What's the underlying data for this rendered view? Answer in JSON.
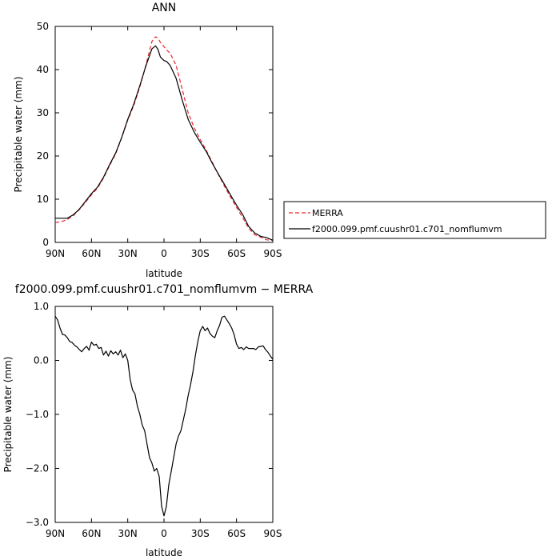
{
  "chart_data": [
    {
      "type": "line",
      "title": "ANN",
      "xlabel": "latitude",
      "ylabel": "Precipitable water  (mm)",
      "xlim": [
        90,
        -90
      ],
      "ylim": [
        0,
        50
      ],
      "x_tick_values": [
        90,
        60,
        30,
        0,
        -30,
        -60,
        -90
      ],
      "x_tick_labels": [
        "90N",
        "60N",
        "30N",
        "0",
        "30S",
        "60S",
        "90S"
      ],
      "y_tick_values": [
        0,
        10,
        20,
        30,
        40,
        50
      ],
      "y_tick_labels": [
        "0",
        "10",
        "20",
        "30",
        "40",
        "50"
      ],
      "grid": false,
      "legend_position": "right",
      "series": [
        {
          "name": "MERRA",
          "color": "#e8262e",
          "dash": "dashed",
          "x": [
            90,
            85,
            80,
            75,
            70,
            65,
            60,
            55,
            50,
            45,
            40,
            35,
            30,
            25,
            20,
            15,
            10,
            7,
            5,
            3,
            0,
            -2,
            -5,
            -10,
            -15,
            -20,
            -25,
            -30,
            -35,
            -40,
            -45,
            -50,
            -55,
            -60,
            -65,
            -70,
            -75,
            -80,
            -85,
            -90
          ],
          "y": [
            4.6,
            4.8,
            5.3,
            6.2,
            7.6,
            9.3,
            11.0,
            12.6,
            14.9,
            17.8,
            20.5,
            24.2,
            28.3,
            31.7,
            36.0,
            41.0,
            46.5,
            47.6,
            47.3,
            46.3,
            45.3,
            44.6,
            43.8,
            41.0,
            35.5,
            30.0,
            26.5,
            23.8,
            21.3,
            18.5,
            15.7,
            13.0,
            10.5,
            8.1,
            5.8,
            3.3,
            1.8,
            1.2,
            0.6,
            0.5
          ]
        },
        {
          "name": "f2000.099.pmf.cuushr01.c701_nomflumvm",
          "color": "#000000",
          "dash": "solid",
          "x": [
            90,
            85,
            80,
            75,
            70,
            65,
            60,
            55,
            50,
            45,
            40,
            35,
            30,
            25,
            20,
            15,
            10,
            7,
            5,
            3,
            0,
            -2,
            -5,
            -10,
            -15,
            -20,
            -25,
            -30,
            -35,
            -40,
            -45,
            -50,
            -55,
            -60,
            -65,
            -70,
            -75,
            -80,
            -85,
            -90
          ],
          "y": [
            5.6,
            5.6,
            5.6,
            6.4,
            7.7,
            9.5,
            11.3,
            12.8,
            15.1,
            18.0,
            20.7,
            24.3,
            28.5,
            32.0,
            36.3,
            40.8,
            44.8,
            45.5,
            44.7,
            42.9,
            42.1,
            41.9,
            41.0,
            38.0,
            33.0,
            28.5,
            25.5,
            23.2,
            21.0,
            18.3,
            15.8,
            13.4,
            11.0,
            8.6,
            6.5,
            3.7,
            2.2,
            1.4,
            1.1,
            0.5
          ]
        }
      ]
    },
    {
      "type": "line",
      "title": "f2000.099.pmf.cuushr01.c701_nomflumvm  −  MERRA",
      "xlabel": "latitude",
      "ylabel": "Precipitable water  (mm)",
      "xlim": [
        90,
        -90
      ],
      "ylim": [
        -3.0,
        1.0
      ],
      "x_tick_values": [
        90,
        60,
        30,
        0,
        -30,
        -60,
        -90
      ],
      "x_tick_labels": [
        "90N",
        "60N",
        "30N",
        "0",
        "30S",
        "60S",
        "90S"
      ],
      "y_tick_values": [
        1.0,
        0.0,
        -1.0,
        -2.0,
        -3.0
      ],
      "y_tick_labels": [
        "1.0",
        "0.0",
        "−1.0",
        "−2.0",
        "−3.0"
      ],
      "grid": false,
      "series": [
        {
          "color": "#000000",
          "dash": "solid",
          "x": [
            90,
            88,
            86,
            84,
            82,
            80,
            78,
            76,
            74,
            72,
            70,
            68,
            66,
            64,
            62,
            60,
            58,
            56,
            54,
            52,
            50,
            48,
            46,
            44,
            42,
            40,
            38,
            36,
            34,
            32,
            30,
            28,
            26,
            24,
            22,
            20,
            18,
            16,
            14,
            12,
            10,
            8,
            6,
            4,
            2,
            0,
            -2,
            -4,
            -6,
            -8,
            -10,
            -12,
            -14,
            -16,
            -18,
            -20,
            -22,
            -24,
            -26,
            -28,
            -30,
            -32,
            -34,
            -36,
            -38,
            -40,
            -42,
            -44,
            -46,
            -48,
            -50,
            -52,
            -54,
            -56,
            -58,
            -60,
            -62,
            -64,
            -66,
            -68,
            -70,
            -72,
            -74,
            -76,
            -78,
            -80,
            -82,
            -84,
            -86,
            -88,
            -90
          ],
          "y": [
            0.82,
            0.75,
            0.6,
            0.48,
            0.47,
            0.42,
            0.35,
            0.33,
            0.28,
            0.25,
            0.2,
            0.16,
            0.22,
            0.26,
            0.19,
            0.34,
            0.28,
            0.3,
            0.22,
            0.24,
            0.1,
            0.17,
            0.08,
            0.18,
            0.12,
            0.16,
            0.1,
            0.19,
            0.05,
            0.12,
            0.0,
            -0.35,
            -0.55,
            -0.62,
            -0.85,
            -1.0,
            -1.2,
            -1.3,
            -1.55,
            -1.8,
            -1.9,
            -2.05,
            -2.0,
            -2.15,
            -2.7,
            -2.88,
            -2.7,
            -2.3,
            -2.05,
            -1.8,
            -1.55,
            -1.4,
            -1.3,
            -1.1,
            -0.9,
            -0.65,
            -0.45,
            -0.2,
            0.1,
            0.35,
            0.55,
            0.63,
            0.55,
            0.6,
            0.5,
            0.45,
            0.42,
            0.55,
            0.65,
            0.8,
            0.82,
            0.75,
            0.68,
            0.6,
            0.48,
            0.3,
            0.22,
            0.24,
            0.2,
            0.25,
            0.22,
            0.22,
            0.22,
            0.2,
            0.25,
            0.26,
            0.27,
            0.2,
            0.15,
            0.08,
            0.02
          ]
        }
      ]
    }
  ]
}
